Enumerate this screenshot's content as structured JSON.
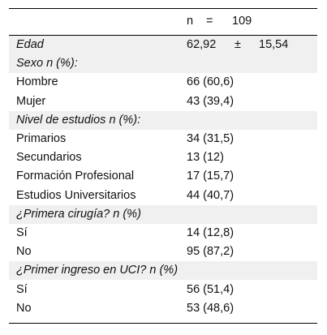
{
  "header": {
    "n_label": "n",
    "equals": "=",
    "n_value": "109"
  },
  "rows": [
    {
      "label": "Edad",
      "italic": true,
      "shaded": true,
      "mean": "62,92",
      "pm": "±",
      "sd": "15,54"
    },
    {
      "label": "Sexo n (%):",
      "italic": true,
      "shaded": true,
      "value": ""
    },
    {
      "label": "Hombre",
      "italic": false,
      "shaded": false,
      "value": "66 (60,6)"
    },
    {
      "label": "Mujer",
      "italic": false,
      "shaded": false,
      "value": "43 (39,4)"
    },
    {
      "label": "Nivel de estudios n (%):",
      "italic": true,
      "shaded": true,
      "value": ""
    },
    {
      "label": "Primarios",
      "italic": false,
      "shaded": false,
      "value": "34 (31,5)"
    },
    {
      "label": "Secundarios",
      "italic": false,
      "shaded": false,
      "value": "13 (12)"
    },
    {
      "label": "Formación Profesional",
      "italic": false,
      "shaded": false,
      "value": "17 (15,7)"
    },
    {
      "label": "Estudios Universitarios",
      "italic": false,
      "shaded": false,
      "value": "44 (40,7)"
    },
    {
      "label": "¿Primera cirugía? n (%)",
      "italic": true,
      "shaded": true,
      "value": ""
    },
    {
      "label": "Sí",
      "italic": false,
      "shaded": false,
      "value": "14 (12,8)"
    },
    {
      "label": "No",
      "italic": false,
      "shaded": false,
      "value": "95 (87,2)"
    },
    {
      "label": "¿Primer ingreso en UCI? n (%)",
      "italic": true,
      "shaded": true,
      "value": ""
    },
    {
      "label": "Sí",
      "italic": false,
      "shaded": false,
      "value": "56 (51,4)"
    },
    {
      "label": "No",
      "italic": false,
      "shaded": false,
      "value": "53 (48,6)"
    }
  ]
}
